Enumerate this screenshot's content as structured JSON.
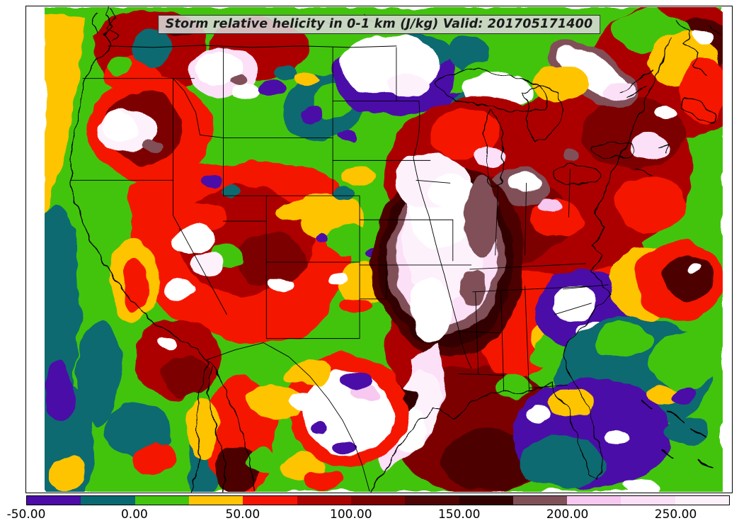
{
  "title": {
    "full": "Storm relative helicity in 0-1 km (J/kg) Valid: 201705171400",
    "variable": "Storm relative helicity in 0-1 km",
    "units": "J/kg",
    "valid_time": "201705171400"
  },
  "chart_data": {
    "type": "heatmap",
    "subtype": "filled-contour-weather-map",
    "title": "Storm relative helicity in 0-1 km (J/kg) Valid: 201705171400",
    "region": "Continental United States with adjacent Pacific, Atlantic, Gulf of Mexico, southern Canada and northern Mexico",
    "units": "J/kg",
    "legend_position": "bottom",
    "grid": false,
    "colorbar": {
      "min": -50,
      "max": 275,
      "interval": 25,
      "orientation": "horizontal",
      "ticks": [
        {
          "value": -50,
          "label": "-50.00"
        },
        {
          "value": 0,
          "label": "0.00"
        },
        {
          "value": 50,
          "label": "50.00"
        },
        {
          "value": 100,
          "label": "100.00"
        },
        {
          "value": 150,
          "label": "150.00"
        },
        {
          "value": 200,
          "label": "200.00"
        },
        {
          "value": 250,
          "label": "250.00"
        }
      ],
      "segments": [
        {
          "from": -50,
          "to": -25,
          "color": "#4B0CA8"
        },
        {
          "from": -25,
          "to": 0,
          "color": "#086A70"
        },
        {
          "from": 0,
          "to": 25,
          "color": "#43C40E"
        },
        {
          "from": 25,
          "to": 50,
          "color": "#FFC403"
        },
        {
          "from": 50,
          "to": 75,
          "color": "#F51505"
        },
        {
          "from": 75,
          "to": 100,
          "color": "#AC0202"
        },
        {
          "from": 100,
          "to": 125,
          "color": "#7D0101"
        },
        {
          "from": 125,
          "to": 150,
          "color": "#4D0505"
        },
        {
          "from": 150,
          "to": 175,
          "color": "#320202"
        },
        {
          "from": 175,
          "to": 200,
          "color": "#805059"
        },
        {
          "from": 200,
          "to": 225,
          "color": "#F7C8F0"
        },
        {
          "from": 225,
          "to": 250,
          "color": "#FBE0F7"
        },
        {
          "from": 250,
          "to": 275,
          "color": "#FDF2FC"
        }
      ],
      "overflow_color": "#FFFFFF"
    },
    "features": [
      "Off-scale white / pale-pink maximum in a comma shape over the central US (Iowa-Missouri-Arkansas) trailing down the Texas gulf coast",
      "Secondary white maxima over central Texas, the interior Pacific Northwest, the upper Midwest / Ontario and near Montreal",
      "Broad dark-red (75-175 J/kg) areas over the Rockies, Midwest, Northeast, western Atlantic and Gulf of Mexico",
      "Negative (purple/teal) values over the Southeast coast, Florida, Great Lakes and northern Plains",
      "Green/yellow (0-50 J/kg) background over the Pacific coast, Plains and Mexico"
    ]
  }
}
